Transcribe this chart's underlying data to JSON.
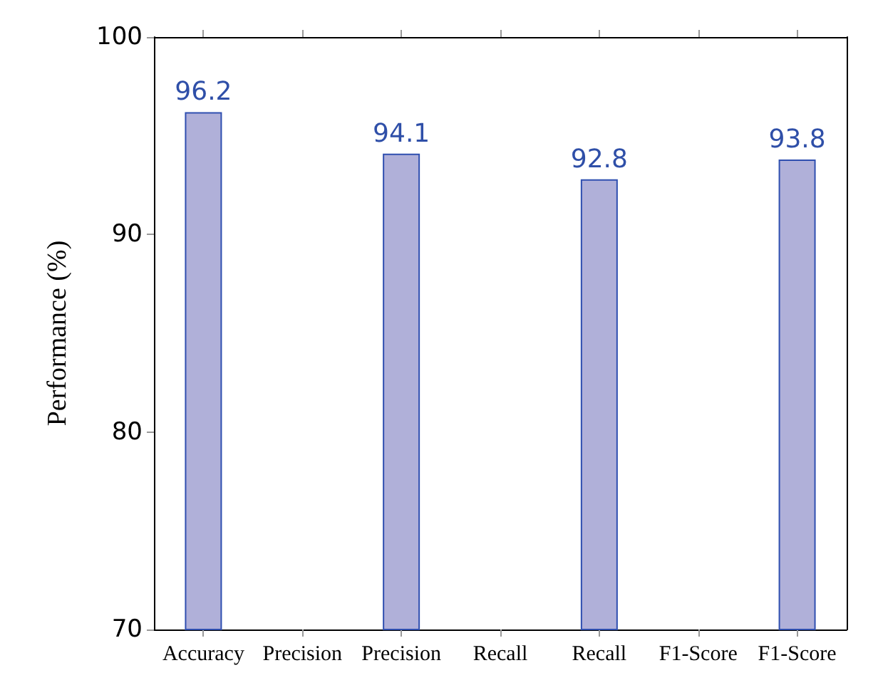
{
  "chart_data": {
    "type": "bar",
    "ylabel": "Performance (%)",
    "categories": [
      "Accuracy",
      "Precision",
      "Precision",
      "Recall",
      "Recall",
      "F1-Score",
      "F1-Score"
    ],
    "values": [
      96.2,
      null,
      94.1,
      null,
      92.8,
      null,
      93.8
    ],
    "color": "#b0b0d9",
    "ylim": [
      70,
      100
    ],
    "yticks": [
      70,
      80,
      90,
      100
    ],
    "grid": false,
    "data_labels": true
  }
}
